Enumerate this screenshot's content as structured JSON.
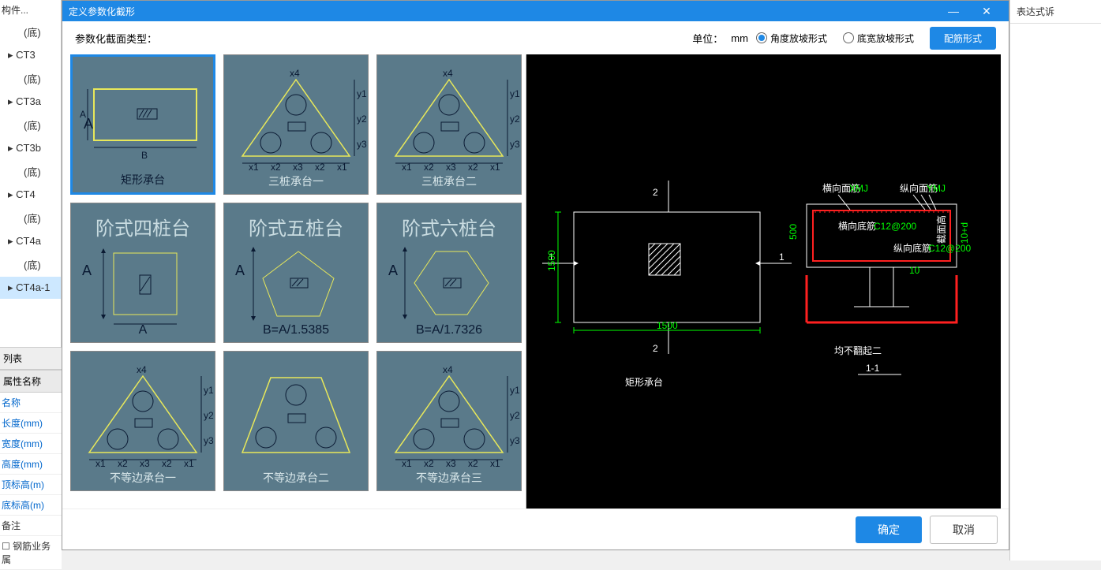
{
  "colors": {
    "accent": "#1e88e5",
    "card_bg": "#5a7a8a",
    "preview_bg": "#000000",
    "shape_yellow": "#e8e85a",
    "dim_green": "#00ff00",
    "red": "#ff2020",
    "white": "#ffffff",
    "cap_dark": "#0a1a33",
    "cap_light": "#dbe9ec"
  },
  "left": {
    "top": "构件...",
    "items": [
      "(底)",
      "CT3",
      "(底)",
      "CT3a",
      "(底)",
      "CT3b",
      "(底)",
      "CT4",
      "(底)",
      "CT4a",
      "(底)",
      "CT4a-1"
    ],
    "selected_index": 11
  },
  "props": {
    "group": "列表",
    "header": "属性名称",
    "rows": [
      "名称",
      "长度(mm)",
      "宽度(mm)",
      "高度(mm)",
      "顶标高(m)",
      "底标高(m)",
      "备注",
      "钢筋业务属"
    ],
    "blue_until": 5,
    "checkbox_last": true
  },
  "dialog": {
    "title": "定义参数化截形",
    "type_label": "参数化截面类型：",
    "unit_label": "单位：",
    "unit_value": "mm",
    "radio1": "角度放坡形式",
    "radio2": "底宽放坡形式",
    "radio_sel": 1,
    "config_btn": "配筋形式",
    "ok": "确定",
    "cancel": "取消"
  },
  "cards": [
    {
      "caption": "矩形承台",
      "cap_color": "dark",
      "selected": true,
      "type": "rect",
      "dimB": "B",
      "dimA": "A"
    },
    {
      "caption": "三桩承台一",
      "cap_color": "white",
      "type": "tri3"
    },
    {
      "caption": "三桩承台二",
      "cap_color": "white",
      "type": "tri3"
    },
    {
      "caption": "",
      "top_title": "阶式四桩台",
      "type": "square",
      "dimA": "A",
      "dimB": "A"
    },
    {
      "caption": "",
      "top_title": "阶式五桩台",
      "type": "pentagon",
      "dimA": "A",
      "dimB": "B=A/1.5385"
    },
    {
      "caption": "",
      "top_title": "阶式六桩台",
      "type": "hexagon",
      "dimA": "A",
      "dimB": "B=A/1.7326"
    },
    {
      "caption": "不等边承台一",
      "cap_color": "white",
      "type": "tri3b"
    },
    {
      "caption": "不等边承台二",
      "cap_color": "white",
      "type": "tri3w"
    },
    {
      "caption": "不等边承台三",
      "cap_color": "white",
      "type": "tri3b"
    }
  ],
  "preview": {
    "title1": "矩形承台",
    "title2": "均不翻起二",
    "sub2": "1-1",
    "mark1": "1",
    "mark2": "2",
    "dim_w": "1500",
    "dim_h": "1500",
    "labels": {
      "hxmj": "横向面筋",
      "zxmj": "纵向面筋",
      "hxdj": "横向底筋",
      "zxdj": "纵向底筋",
      "hm": "截面高"
    },
    "rebar_spec": "C12@200",
    "green1": "XMJ",
    "green2": "YMJ"
  },
  "right": {
    "tab": "表达式诉"
  }
}
